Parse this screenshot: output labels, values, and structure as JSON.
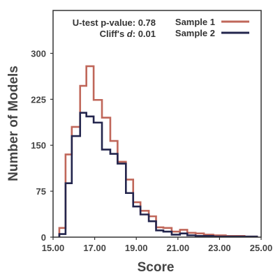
{
  "chart_data": {
    "type": "step-histogram",
    "xlabel": "Score",
    "ylabel": "Number of Models",
    "xlim": [
      15.0,
      25.0
    ],
    "ylim": [
      0,
      370
    ],
    "x_ticks": [
      15.0,
      17.0,
      19.0,
      21.0,
      23.0,
      25.0
    ],
    "x_tick_labels": [
      "15.00",
      "17.00",
      "19.00",
      "21.00",
      "23.00",
      "25.00"
    ],
    "y_ticks": [
      0,
      75,
      150,
      225,
      300
    ],
    "y_tick_labels": [
      "0",
      "75",
      "150",
      "225",
      "300"
    ],
    "grid": false,
    "legend_position": "top-right",
    "annotations": {
      "utest": "U-test p-value: 0.78",
      "cliffs_prefix": "Cliff's ",
      "cliffs_symbol": "d",
      "cliffs_value": ": 0.01"
    },
    "series": [
      {
        "name": "Sample 1",
        "color": "#c0675a",
        "edges": [
          15.3,
          15.6,
          15.9,
          16.3,
          16.6,
          16.95,
          17.35,
          17.75,
          18.1,
          18.5,
          18.85,
          19.2,
          19.6,
          19.95,
          20.3,
          20.7,
          21.1,
          21.45,
          21.85,
          22.25,
          22.7,
          23.3,
          24.2,
          24.8
        ],
        "values": [
          15,
          135,
          180,
          247,
          279,
          224,
          195,
          157,
          123,
          94,
          57,
          43,
          34,
          16,
          15,
          9,
          12,
          7,
          6,
          4,
          3,
          2,
          1
        ]
      },
      {
        "name": "Sample 2",
        "color": "#23254d",
        "edges": [
          15.3,
          15.6,
          15.9,
          16.3,
          16.6,
          16.95,
          17.35,
          17.75,
          18.1,
          18.5,
          18.85,
          19.2,
          19.6,
          19.95,
          20.3,
          20.7,
          21.1,
          21.45,
          21.85,
          22.25,
          22.7,
          23.3,
          24.2,
          24.8
        ],
        "values": [
          5,
          88,
          165,
          203,
          197,
          187,
          143,
          136,
          120,
          72,
          50,
          37,
          26,
          11,
          9,
          4,
          6,
          3,
          2,
          2,
          1,
          1,
          1
        ]
      }
    ]
  }
}
